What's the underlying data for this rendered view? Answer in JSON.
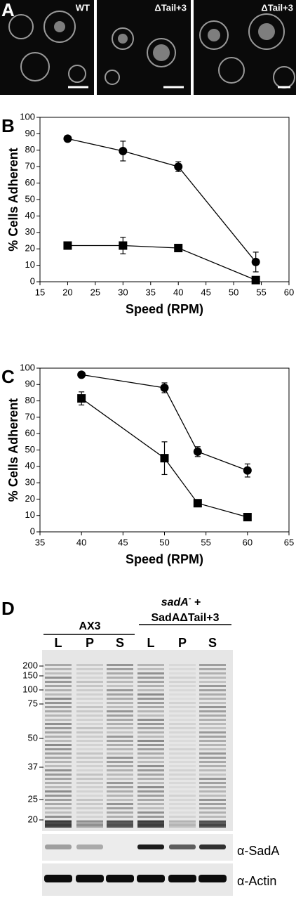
{
  "panel_a": {
    "panel": "A",
    "labels": [
      "WT",
      "ΔTail+3",
      "ΔTail+3"
    ]
  },
  "chart_data": [
    {
      "type": "line",
      "panel": "B",
      "xlabel": "Speed (RPM)",
      "ylabel": "% Cells Adherent",
      "x": [
        20,
        30,
        40,
        54
      ],
      "xlim": [
        15,
        60
      ],
      "xticks": [
        15,
        20,
        25,
        30,
        35,
        40,
        45,
        50,
        55,
        60
      ],
      "ylim": [
        0,
        100
      ],
      "yticks": [
        0,
        10,
        20,
        30,
        40,
        50,
        60,
        70,
        80,
        90,
        100
      ],
      "series": [
        {
          "marker": "circle",
          "color": "#000000",
          "values": [
            87,
            79.5,
            70,
            12
          ],
          "errors": [
            0,
            6,
            3,
            6
          ]
        },
        {
          "marker": "square",
          "color": "#000000",
          "values": [
            22,
            22,
            20.5,
            1
          ],
          "errors": [
            1.5,
            5,
            1,
            1
          ]
        }
      ]
    },
    {
      "type": "line",
      "panel": "C",
      "xlabel": "Speed (RPM)",
      "ylabel": "% Cells Adherent",
      "x": [
        40,
        50,
        54,
        60
      ],
      "xlim": [
        35,
        65
      ],
      "xticks": [
        35,
        40,
        45,
        50,
        55,
        60,
        65
      ],
      "ylim": [
        0,
        100
      ],
      "yticks": [
        0,
        10,
        20,
        30,
        40,
        50,
        60,
        70,
        80,
        90,
        100
      ],
      "series": [
        {
          "marker": "circle",
          "color": "#000000",
          "values": [
            96,
            88,
            49,
            37.5
          ],
          "errors": [
            0,
            3,
            3,
            4
          ]
        },
        {
          "marker": "square",
          "color": "#000000",
          "values": [
            81.5,
            45,
            17.5,
            9
          ],
          "errors": [
            4,
            10,
            0,
            0
          ]
        }
      ]
    }
  ],
  "panel_d": {
    "panel": "D",
    "group1": {
      "label": "AX3",
      "lanes": [
        "L",
        "P",
        "S"
      ]
    },
    "group2": {
      "strain": "sadA",
      "superscript": "-",
      "suffix": " +",
      "label": "SadAΔTail+3",
      "lanes": [
        "L",
        "P",
        "S"
      ]
    },
    "weights": [
      "200",
      "150",
      "100",
      "75",
      "50",
      "37",
      "25",
      "20"
    ],
    "blots": [
      "α-SadA",
      "α-Actin"
    ]
  }
}
